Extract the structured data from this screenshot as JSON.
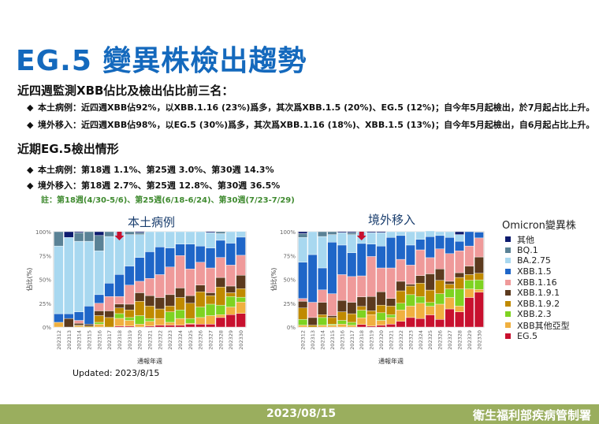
{
  "title": "EG.5 變異株檢出趨勢",
  "section1": {
    "heading": "近四週監測XBB佔比及檢出佔比前三名：",
    "bullets": [
      "本土病例：近四週XBB佔92%，以XBB.1.16 (23%)爲多，其次爲XBB.1.5 (20%)、EG.5 (12%)；自今年5月起檢出，於7月起占比上升。",
      "境外移入：近四週XBB佔98%，以EG.5 (30%)爲多，其次爲XBB.1.16 (18%)、XBB.1.5 (13%)；自今年5月起檢出，自6月起占比上升。"
    ]
  },
  "section2": {
    "heading": "近期EG.5檢出情形",
    "bullets": [
      "本土病例：第18週 1.1%、第25週 3.0%、第30週  14.3%",
      "境外移入：第18週 2.7%、第25週 12.8%、第30週  36.5%"
    ],
    "note": "註：第18週(4/30-5/6)、第25週(6/18-6/24)、第30週(7/23-7/29)"
  },
  "bullet_icon": "diamond",
  "updated": "Updated: 2023/8/15",
  "footer": {
    "date": "2023/08/15",
    "org": "衛生福利部疾病管制署"
  },
  "legend_title": "Omicron變異株",
  "chart_data": [
    {
      "type": "bar",
      "stacked": true,
      "title": "本土病例",
      "xlabel": "通報年週",
      "ylabel": "佔比(%)",
      "ylim": [
        0,
        100
      ],
      "yticks": [
        "0%",
        "25%",
        "50%",
        "75%",
        "100%"
      ],
      "marker": {
        "icon": "red-down-arrow",
        "at": "202318"
      },
      "categories": [
        "202312",
        "202313",
        "202314",
        "202315",
        "202316",
        "202317",
        "202318",
        "202319",
        "202320",
        "202321",
        "202322",
        "202323",
        "202324",
        "202325",
        "202326",
        "202327",
        "202328",
        "202329",
        "202330"
      ],
      "series": [
        {
          "name": "EG.5",
          "color": "#c8102e",
          "values": [
            0,
            0,
            0,
            0,
            0,
            0,
            1.1,
            1,
            0,
            1,
            2,
            2,
            2,
            3,
            3,
            3,
            10,
            13,
            14.3
          ]
        },
        {
          "name": "XBB其他亞型",
          "color": "#f0b040",
          "values": [
            5,
            0,
            1,
            0,
            3,
            0,
            8,
            6,
            3,
            5,
            7,
            3,
            7,
            1,
            7,
            9,
            3,
            8,
            12
          ]
        },
        {
          "name": "XBB.2.3",
          "color": "#7ed321",
          "values": [
            0,
            0,
            0,
            0,
            2,
            0,
            5,
            3,
            9,
            3,
            0,
            11,
            9,
            5,
            11,
            12,
            10,
            11,
            5
          ]
        },
        {
          "name": "XBB.1.9.2",
          "color": "#c08a00",
          "values": [
            0,
            0,
            1,
            1,
            7,
            10,
            6,
            8,
            15,
            13,
            10,
            6,
            13,
            16,
            16,
            9,
            19,
            4,
            9
          ]
        },
        {
          "name": "XBB.1.9.1",
          "color": "#5c3a1e",
          "values": [
            0,
            9,
            2,
            2,
            5,
            7,
            4,
            6,
            9,
            11,
            12,
            12,
            10,
            8,
            7,
            3,
            10,
            7,
            14
          ]
        },
        {
          "name": "XBB.1.16",
          "color": "#ef9a9a",
          "values": [
            0,
            0,
            3,
            0,
            8,
            15,
            8,
            20,
            12,
            18,
            24,
            29,
            34,
            28,
            24,
            26,
            21,
            22,
            21
          ]
        },
        {
          "name": "XBB.1.5",
          "color": "#1f66c8",
          "values": [
            9,
            5,
            9,
            19,
            9,
            14,
            23,
            20,
            25,
            28,
            29,
            20,
            12,
            26,
            17,
            21,
            18,
            23,
            19
          ]
        },
        {
          "name": "BA.2.75",
          "color": "#a8d8f0",
          "values": [
            71,
            80,
            74,
            68,
            46,
            49,
            45,
            33,
            24,
            21,
            16,
            17,
            13,
            13,
            15,
            16,
            7,
            12,
            6
          ]
        },
        {
          "name": "BQ.1",
          "color": "#5a8296",
          "values": [
            15,
            0,
            9,
            10,
            16,
            5,
            0,
            3,
            2,
            0,
            0,
            0,
            0,
            0,
            0,
            0,
            2,
            0,
            0
          ]
        },
        {
          "name": "其他",
          "color": "#0d1b6e",
          "values": [
            0,
            6,
            1,
            0,
            4,
            0,
            0,
            0,
            1,
            0,
            0,
            0,
            0,
            0,
            0,
            1,
            0,
            0,
            0
          ]
        }
      ]
    },
    {
      "type": "bar",
      "stacked": true,
      "title": "境外移入",
      "xlabel": "通報年週",
      "ylabel": "佔比(%)",
      "ylim": [
        0,
        100
      ],
      "yticks": [
        "0%",
        "25%",
        "50%",
        "75%",
        "100%"
      ],
      "marker": {
        "icon": "red-down-arrow",
        "at": "202318"
      },
      "categories": [
        "202312",
        "202313",
        "202314",
        "202315",
        "202316",
        "202317",
        "202318",
        "202319",
        "202320",
        "202321",
        "202322",
        "202323",
        "202324",
        "202325",
        "202326",
        "202327",
        "202328",
        "202329",
        "202330"
      ],
      "series": [
        {
          "name": "EG.5",
          "color": "#c8102e",
          "values": [
            0,
            0,
            0,
            0,
            0,
            0,
            2.7,
            1,
            2,
            3,
            6,
            10,
            9,
            12.8,
            8,
            19,
            16,
            31,
            36.5
          ]
        },
        {
          "name": "XBB其他亞型",
          "color": "#f0b040",
          "values": [
            2,
            0,
            2,
            2,
            3,
            2,
            7,
            12,
            5,
            7,
            12,
            12,
            16,
            9,
            16,
            12,
            6,
            9,
            3
          ]
        },
        {
          "name": "XBB.2.3",
          "color": "#7ed321",
          "values": [
            6,
            0,
            8,
            1,
            4,
            3,
            8,
            0,
            8,
            3,
            7,
            12,
            7,
            4,
            11,
            9,
            18,
            9,
            10
          ]
        },
        {
          "name": "XBB.1.9.2",
          "color": "#c08a00",
          "values": [
            12,
            2,
            3,
            7,
            9,
            9,
            4,
            4,
            8,
            9,
            13,
            9,
            14,
            13,
            14,
            5,
            12,
            6,
            7
          ]
        },
        {
          "name": "XBB.1.9.1",
          "color": "#5c3a1e",
          "values": [
            7,
            8,
            13,
            2,
            12,
            12,
            10,
            15,
            14,
            8,
            10,
            2,
            8,
            17,
            12,
            3,
            5,
            9,
            17
          ]
        },
        {
          "name": "XBB.1.16",
          "color": "#ef9a9a",
          "values": [
            3,
            16,
            13,
            23,
            27,
            27,
            22,
            42,
            25,
            32,
            23,
            20,
            27,
            17,
            21,
            29,
            23,
            21,
            20
          ]
        },
        {
          "name": "XBB.1.5",
          "color": "#1f66c8",
          "values": [
            38,
            50,
            23,
            54,
            31,
            25,
            34,
            13,
            23,
            32,
            25,
            21,
            11,
            22,
            14,
            17,
            10,
            15,
            6
          ]
        },
        {
          "name": "BA.2.75",
          "color": "#a8d8f0",
          "values": [
            26,
            24,
            33,
            8,
            13,
            19,
            12,
            12,
            14,
            6,
            4,
            14,
            8,
            6,
            4,
            6,
            7,
            0,
            0
          ]
        },
        {
          "name": "BQ.1",
          "color": "#5a8296",
          "values": [
            4,
            0,
            5,
            3,
            0,
            2,
            0,
            0,
            0,
            0,
            0,
            0,
            0,
            0,
            0,
            0,
            0,
            0,
            0
          ]
        },
        {
          "name": "其他",
          "color": "#0d1b6e",
          "values": [
            2,
            0,
            0,
            0,
            1,
            1,
            0,
            1,
            1,
            0,
            0,
            0,
            0,
            0,
            0,
            0,
            3,
            0,
            0
          ]
        }
      ]
    }
  ]
}
